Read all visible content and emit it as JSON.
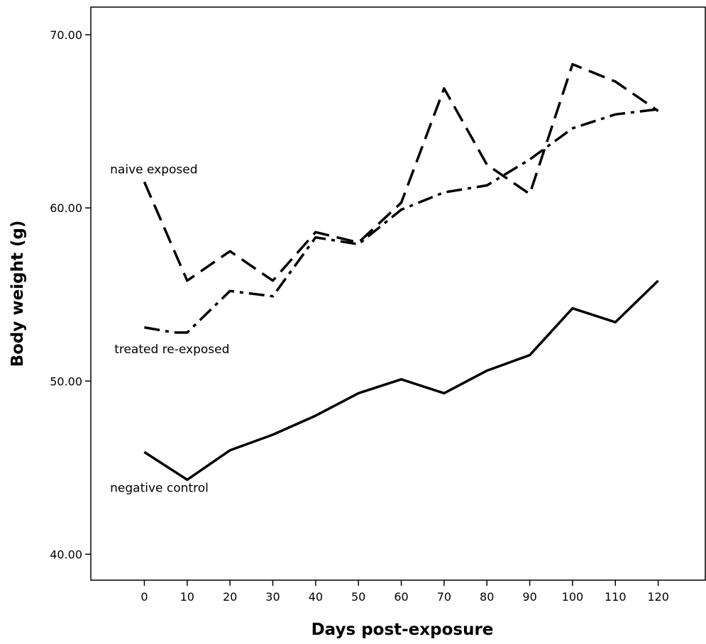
{
  "chart_data": {
    "type": "line",
    "xlabel": "Days post-exposure",
    "ylabel": "Body weight (g)",
    "x": [
      0,
      10,
      20,
      30,
      40,
      50,
      60,
      70,
      80,
      90,
      100,
      110,
      120
    ],
    "x_ticks": [
      "0",
      "10",
      "20",
      "30",
      "40",
      "50",
      "60",
      "70",
      "80",
      "90",
      "100",
      "110",
      "120"
    ],
    "xlim": [
      -12.5,
      131
    ],
    "y_ticks": [
      {
        "value": 40,
        "label": "40.00"
      },
      {
        "value": 50,
        "label": "50.00"
      },
      {
        "value": 60,
        "label": "60.00"
      },
      {
        "value": 70,
        "label": "70.00"
      }
    ],
    "ylim": [
      38.5,
      71.6
    ],
    "grid": false,
    "series": [
      {
        "name": "naive exposed",
        "style": "dashed",
        "label_x": -8,
        "label_y": 62.0,
        "values": [
          61.5,
          55.8,
          57.5,
          55.8,
          58.6,
          58.0,
          60.3,
          66.9,
          62.5,
          60.8,
          68.3,
          67.3,
          65.6
        ]
      },
      {
        "name": "treated re-exposed",
        "style": "dashdot",
        "label_x": -7,
        "label_y": 51.6,
        "x": [
          0,
          7,
          10,
          20,
          30,
          40,
          50,
          60,
          70,
          80,
          90,
          100,
          110,
          120
        ],
        "values": [
          53.1,
          52.8,
          52.8,
          55.2,
          54.9,
          58.3,
          57.9,
          59.9,
          60.9,
          61.3,
          62.8,
          64.6,
          65.4,
          65.7
        ]
      },
      {
        "name": "negative control",
        "style": "solid",
        "label_x": -8,
        "label_y": 43.6,
        "values": [
          45.9,
          44.3,
          46.0,
          46.9,
          48.0,
          49.3,
          50.1,
          49.3,
          50.6,
          51.5,
          54.2,
          53.4,
          55.8
        ]
      }
    ]
  }
}
